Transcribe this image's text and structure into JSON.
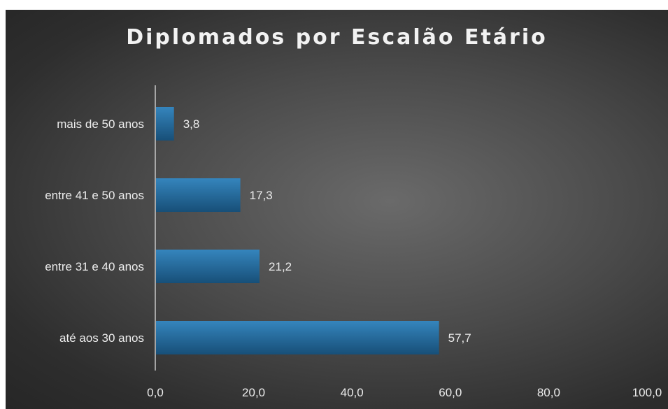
{
  "chart_data": {
    "type": "bar",
    "orientation": "horizontal",
    "title": "Diplomados por Escalão Etário",
    "categories": [
      "até aos 30 anos",
      "entre 31 e 40 anos",
      "entre 41 e 50 anos",
      "mais de 50 anos"
    ],
    "values": [
      57.7,
      21.2,
      17.3,
      3.8
    ],
    "value_labels": [
      "57,7",
      "21,2",
      "17,3",
      "3,8"
    ],
    "xlim": [
      0,
      100
    ],
    "x_ticks": [
      "0,0",
      "20,0",
      "40,0",
      "60,0",
      "80,0",
      "100,0"
    ],
    "grid": false,
    "legend": "none",
    "colors": {
      "bar_top": "#2f7ab0",
      "bar_bottom": "#1a5a86",
      "background": "#4a4a4a",
      "text": "#ececec"
    }
  }
}
